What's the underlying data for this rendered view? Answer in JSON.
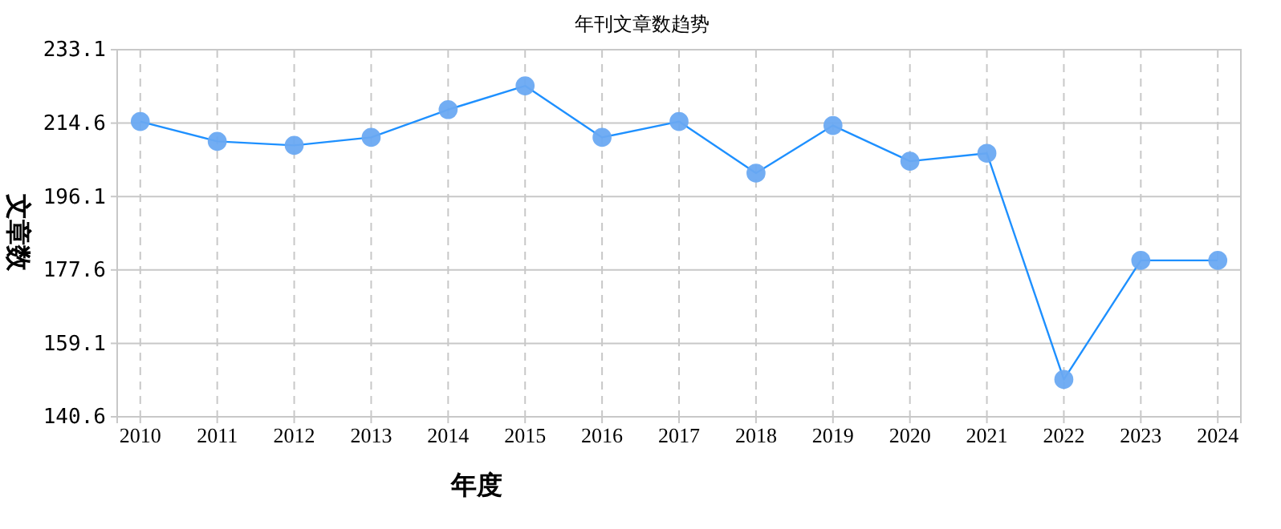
{
  "chart_data": {
    "type": "line",
    "title": "年刊文章数趋势",
    "xlabel": "年度",
    "ylabel": "文章数",
    "categories": [
      "2010",
      "2011",
      "2012",
      "2013",
      "2014",
      "2015",
      "2016",
      "2017",
      "2018",
      "2019",
      "2020",
      "2021",
      "2022",
      "2023",
      "2024"
    ],
    "series": [
      {
        "color": "#1e90ff",
        "values": [
          215,
          210,
          209,
          211,
          218,
          224,
          211,
          215,
          202,
          214,
          205,
          207,
          150,
          180,
          180
        ]
      }
    ],
    "ylim": [
      140.6,
      233.1
    ],
    "yticks": [
      140.6,
      159.1,
      177.6,
      196.1,
      214.6,
      233.1
    ],
    "grid": true,
    "marker": "circle",
    "line_style": "solid",
    "legend": false
  }
}
